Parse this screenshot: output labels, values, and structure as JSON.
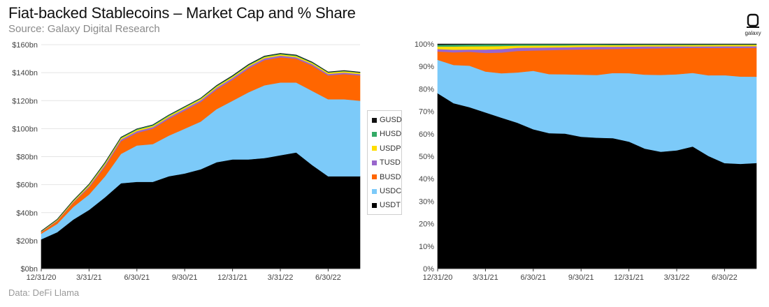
{
  "header": {
    "title": "Fiat-backed Stablecoins – Market Cap and % Share",
    "subtitle": "Source: Galaxy Digital Research",
    "footer": "Data: DeFi Llama",
    "logo_text": "galaxy",
    "logo_icon": "galaxy-logo-icon"
  },
  "chart_data": [
    {
      "type": "area",
      "stacked": true,
      "title": "Market Cap",
      "x": [
        "12/31/20",
        "1/31/21",
        "2/28/21",
        "3/31/21",
        "4/30/21",
        "5/31/21",
        "6/30/21",
        "7/31/21",
        "8/31/21",
        "9/30/21",
        "10/31/21",
        "11/30/21",
        "12/31/21",
        "1/31/22",
        "2/28/22",
        "3/31/22",
        "4/30/22",
        "5/31/22",
        "6/30/22",
        "7/31/22",
        "8/15/22"
      ],
      "x_tick_labels": [
        "12/31/20",
        "3/31/21",
        "6/30/21",
        "9/30/21",
        "12/31/21",
        "3/31/22",
        "6/30/22"
      ],
      "y_tick_labels": [
        "$0bn",
        "$20bn",
        "$40bn",
        "$60bn",
        "$80bn",
        "$100bn",
        "$120bn",
        "$140bn",
        "$160bn"
      ],
      "ylim": [
        0,
        160
      ],
      "unit": "bn USD",
      "series": [
        {
          "name": "USDT",
          "color": "#000000",
          "values": [
            21,
            26,
            35,
            42,
            51,
            61,
            62,
            62,
            66,
            68,
            71,
            76,
            78,
            78,
            79,
            81,
            83,
            74,
            66,
            66,
            66
          ]
        },
        {
          "name": "USDC",
          "color": "#7ccaf9",
          "values": [
            4,
            6,
            9,
            11,
            15,
            21,
            26,
            27,
            29,
            32,
            34,
            38,
            42,
            48,
            52,
            52,
            50,
            53,
            55,
            55,
            54
          ]
        },
        {
          "name": "BUSD",
          "color": "#ff6600",
          "values": [
            1,
            2,
            3,
            5,
            7,
            9,
            9,
            11,
            12,
            13,
            14,
            14,
            15,
            17,
            18,
            18,
            17,
            18,
            17,
            18,
            18
          ]
        },
        {
          "name": "TUSD",
          "color": "#9966cc",
          "values": [
            0.3,
            0.4,
            0.5,
            0.9,
            1.2,
            1.3,
            1.3,
            1.2,
            1.2,
            1.3,
            1.3,
            1.3,
            1.3,
            1.3,
            1.3,
            1.2,
            1.0,
            1.1,
            1.1,
            1.1,
            1.0
          ]
        },
        {
          "name": "USDP",
          "color": "#ffdd00",
          "values": [
            0.3,
            0.5,
            0.7,
            0.9,
            1.0,
            0.9,
            0.9,
            0.9,
            0.9,
            0.9,
            0.9,
            0.9,
            0.9,
            0.9,
            0.9,
            0.9,
            0.9,
            0.9,
            0.9,
            0.9,
            0.9
          ]
        },
        {
          "name": "HUSD",
          "color": "#33aa66",
          "values": [
            0.2,
            0.3,
            0.4,
            0.5,
            0.6,
            0.6,
            0.6,
            0.6,
            0.6,
            0.5,
            0.5,
            0.5,
            0.5,
            0.5,
            0.5,
            0.5,
            0.5,
            0.4,
            0.3,
            0.3,
            0.3
          ]
        },
        {
          "name": "GUSD",
          "color": "#111111",
          "values": [
            0.1,
            0.1,
            0.1,
            0.1,
            0.1,
            0.1,
            0.1,
            0.1,
            0.1,
            0.1,
            0.1,
            0.2,
            0.2,
            0.2,
            0.2,
            0.2,
            0.2,
            0.2,
            0.2,
            0.2,
            0.2
          ]
        }
      ]
    },
    {
      "type": "area",
      "stacked": true,
      "normalized": true,
      "title": "% Share",
      "x": [
        "12/31/20",
        "1/31/21",
        "2/28/21",
        "3/31/21",
        "4/30/21",
        "5/31/21",
        "6/30/21",
        "7/31/21",
        "8/31/21",
        "9/30/21",
        "10/31/21",
        "11/30/21",
        "12/31/21",
        "1/31/22",
        "2/28/22",
        "3/31/22",
        "4/30/22",
        "5/31/22",
        "6/30/22",
        "7/31/22",
        "8/15/22"
      ],
      "x_tick_labels": [
        "12/31/20",
        "3/31/21",
        "6/30/21",
        "9/30/21",
        "12/31/21",
        "3/31/22",
        "6/30/22"
      ],
      "y_tick_labels": [
        "0%",
        "10%",
        "20%",
        "30%",
        "40%",
        "50%",
        "60%",
        "70%",
        "80%",
        "90%",
        "100%"
      ],
      "ylim": [
        0,
        100
      ],
      "unit": "%"
    }
  ],
  "legend": {
    "items": [
      {
        "name": "GUSD",
        "color": "#111111"
      },
      {
        "name": "HUSD",
        "color": "#33aa66"
      },
      {
        "name": "USDP",
        "color": "#ffdd00"
      },
      {
        "name": "TUSD",
        "color": "#9966cc"
      },
      {
        "name": "BUSD",
        "color": "#ff6600"
      },
      {
        "name": "USDC",
        "color": "#7ccaf9"
      },
      {
        "name": "USDT",
        "color": "#000000"
      }
    ]
  }
}
